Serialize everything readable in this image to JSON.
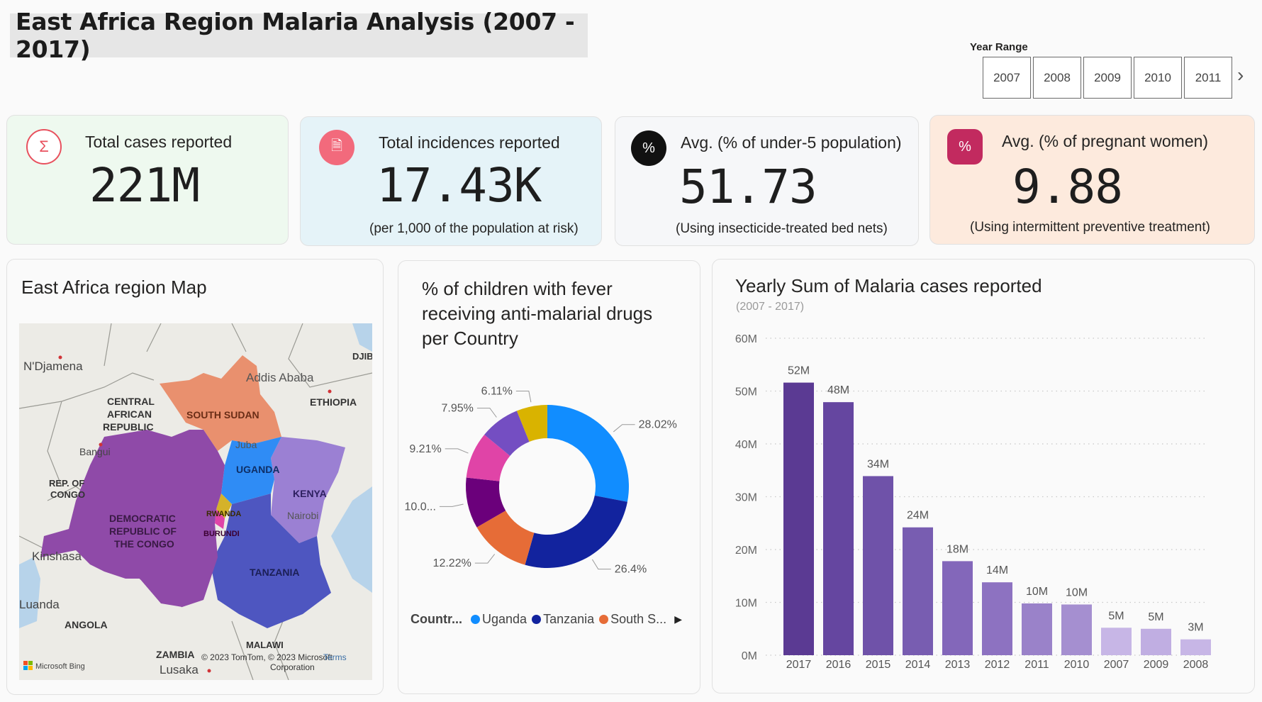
{
  "title": "East Africa Region Malaria Analysis (2007 - 2017)",
  "slicer": {
    "label": "Year Range",
    "years": [
      "2007",
      "2008",
      "2009",
      "2010",
      "2011"
    ]
  },
  "kpis": [
    {
      "label": "Total cases reported",
      "value": "221M",
      "sub": "",
      "icon": "hand-sigma-icon",
      "bg": "#eef9ef",
      "accent": "#e8515e"
    },
    {
      "label": "Total incidences reported",
      "value": "17.43K",
      "sub": "(per 1,000 of the population at risk)",
      "icon": "document-icon",
      "bg": "#e5f3f8",
      "accent": "#f04770"
    },
    {
      "label": "Avg. (% of under-5 population)",
      "value": "51.73",
      "sub": "(Using insecticide-treated bed nets)",
      "icon": "percent-badge-icon",
      "bg": "#f6f7f9",
      "accent": "#111111"
    },
    {
      "label": "Avg. (% of pregnant women)",
      "value": "9.88",
      "sub": "(Using intermittent preventive treatment)",
      "icon": "percent-hexagon-icon",
      "bg": "#fdeadd",
      "accent": "#c22a5f"
    }
  ],
  "map": {
    "title": "East Africa region Map",
    "labels": {
      "ndjamena": "N'Djamena",
      "car": "CENTRAL",
      "car2": "AFRICAN",
      "car3": "REPUBLIC",
      "bangui": "Bangui",
      "rep_congo": "REP. OF",
      "rep_congo2": "CONGO",
      "drc": "DEMOCRATIC",
      "drc2": "REPUBLIC OF",
      "drc3": "THE CONGO",
      "kinshasa": "Kinshasa",
      "luanda": "Luanda",
      "angola": "ANGOLA",
      "zambia": "ZAMBIA",
      "lusaka": "Lusaka",
      "malawi": "MALAWI",
      "south_sudan": "SOUTH SUDAN",
      "juba": "Juba",
      "addis": "Addis Ababa",
      "ethiopia": "ETHIOPIA",
      "djib": "DJIB",
      "uganda": "UGANDA",
      "kenya": "KENYA",
      "nairobi": "Nairobi",
      "rwanda": "RWANDA",
      "burundi": "BURUNDI",
      "tanzania": "TANZANIA"
    },
    "attribution": "© 2023 TomTom, © 2023 Microsoft",
    "attribution2": "Corporation",
    "terms": "Terms",
    "bing": "Microsoft Bing"
  },
  "donut": {
    "title_lines": [
      "% of children with fever",
      "receiving anti-malarial drugs",
      "per Country"
    ],
    "legend_title": "Countr...",
    "legend_items": [
      {
        "name": "Uganda",
        "color": "#118dff"
      },
      {
        "name": "Tanzania",
        "color": "#12239e"
      },
      {
        "name": "South S...",
        "color": "#e66c37"
      }
    ]
  },
  "bar": {
    "title": "Yearly Sum of Malaria cases reported",
    "subtitle": "(2007 - 2017)"
  },
  "chart_data": [
    {
      "type": "pie",
      "title": "% of children with fever receiving anti-malarial drugs per Country",
      "slices": [
        {
          "label": "28.02%",
          "value": 28.02,
          "color": "#118dff",
          "legend": "Uganda"
        },
        {
          "label": "26.4%",
          "value": 26.4,
          "color": "#12239e",
          "legend": "Tanzania"
        },
        {
          "label": "12.22%",
          "value": 12.22,
          "color": "#e66c37",
          "legend": "South S..."
        },
        {
          "label": "10.0...",
          "value": 10.09,
          "color": "#6b007b"
        },
        {
          "label": "9.21%",
          "value": 9.21,
          "color": "#e044a7"
        },
        {
          "label": "7.95%",
          "value": 7.95,
          "color": "#744ec2"
        },
        {
          "label": "6.11%",
          "value": 6.11,
          "color": "#d9b300"
        }
      ]
    },
    {
      "type": "bar",
      "title": "Yearly Sum of Malaria cases reported",
      "categories": [
        "2017",
        "2016",
        "2015",
        "2014",
        "2013",
        "2012",
        "2011",
        "2010",
        "2007",
        "2009",
        "2008"
      ],
      "values": [
        51.6,
        47.9,
        33.9,
        24.2,
        17.8,
        13.8,
        9.8,
        9.6,
        5.2,
        5.0,
        3.0
      ],
      "value_labels": [
        "52M",
        "48M",
        "34M",
        "24M",
        "18M",
        "14M",
        "10M",
        "10M",
        "5M",
        "5M",
        "3M"
      ],
      "colors": [
        "#5b3a93",
        "#6546a0",
        "#6f52a9",
        "#785db1",
        "#8367ba",
        "#8d72c1",
        "#9a82c9",
        "#a58fd0",
        "#c7b6e6",
        "#c0aee2",
        "#c7b6e6"
      ],
      "ylim": [
        0,
        60
      ],
      "yticks": [
        "0M",
        "10M",
        "20M",
        "30M",
        "40M",
        "50M",
        "60M"
      ],
      "grid": true
    }
  ]
}
